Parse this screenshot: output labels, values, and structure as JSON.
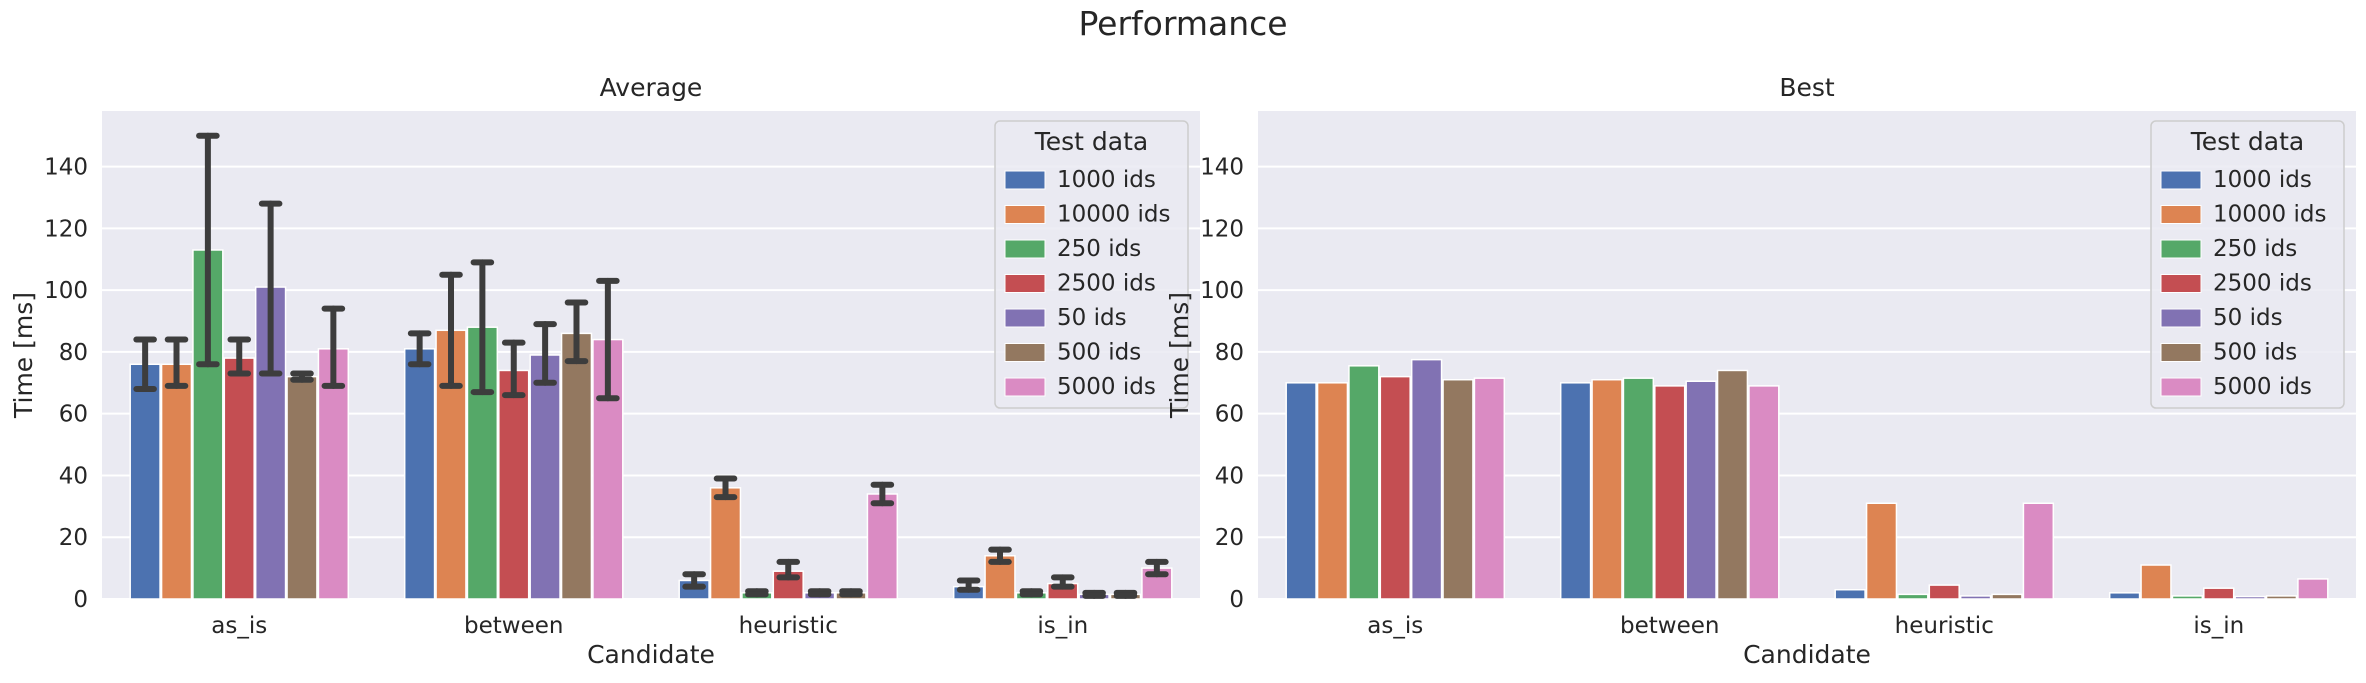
{
  "figure_title": "Performance",
  "chart_data": [
    {
      "type": "bar",
      "title": "Average",
      "xlabel": "Candidate",
      "ylabel": "Time [ms]",
      "categories": [
        "as_is",
        "between",
        "heuristic",
        "is_in"
      ],
      "ylim": [
        0,
        158
      ],
      "yticks": [
        0,
        20,
        40,
        60,
        80,
        100,
        120,
        140
      ],
      "grid": true,
      "legend": {
        "title": "Test data",
        "placement": "upper-right"
      },
      "error_bars": true,
      "series": [
        {
          "name": "1000 ids",
          "color": "#4c72b0",
          "values": [
            76,
            81,
            6,
            4
          ],
          "err_low": [
            68,
            76,
            4,
            3
          ],
          "err_high": [
            84,
            86,
            8,
            6
          ]
        },
        {
          "name": "10000 ids",
          "color": "#dd8452",
          "values": [
            76,
            87,
            36,
            14
          ],
          "err_low": [
            69,
            69,
            33,
            12
          ],
          "err_high": [
            84,
            105,
            39,
            16
          ]
        },
        {
          "name": "250 ids",
          "color": "#55a868",
          "values": [
            113,
            88,
            2,
            2
          ],
          "err_low": [
            76,
            67,
            1.5,
            1.5
          ],
          "err_high": [
            150,
            109,
            2.5,
            2.5
          ]
        },
        {
          "name": "2500 ids",
          "color": "#c44e52",
          "values": [
            78,
            74,
            9,
            5
          ],
          "err_low": [
            73,
            66,
            7,
            4
          ],
          "err_high": [
            84,
            83,
            12,
            7
          ]
        },
        {
          "name": "50 ids",
          "color": "#8172b3",
          "values": [
            101,
            79,
            2,
            1.5
          ],
          "err_low": [
            73,
            70,
            1.5,
            1
          ],
          "err_high": [
            128,
            89,
            2.5,
            2
          ]
        },
        {
          "name": "500 ids",
          "color": "#937860",
          "values": [
            72,
            86,
            2,
            1.5
          ],
          "err_low": [
            71,
            77,
            1.5,
            1
          ],
          "err_high": [
            73,
            96,
            2.5,
            2
          ]
        },
        {
          "name": "5000 ids",
          "color": "#da8bc3",
          "values": [
            81,
            84,
            34,
            10
          ],
          "err_low": [
            69,
            65,
            31,
            8
          ],
          "err_high": [
            94,
            103,
            37,
            12
          ]
        }
      ]
    },
    {
      "type": "bar",
      "title": "Best",
      "xlabel": "Candidate",
      "ylabel": "Time [ms]",
      "categories": [
        "as_is",
        "between",
        "heuristic",
        "is_in"
      ],
      "ylim": [
        0,
        158
      ],
      "yticks": [
        0,
        20,
        40,
        60,
        80,
        100,
        120,
        140
      ],
      "grid": true,
      "legend": {
        "title": "Test data",
        "placement": "upper-right"
      },
      "error_bars": false,
      "series": [
        {
          "name": "1000 ids",
          "color": "#4c72b0",
          "values": [
            70,
            70,
            3,
            2
          ]
        },
        {
          "name": "10000 ids",
          "color": "#dd8452",
          "values": [
            70,
            71,
            31,
            11
          ]
        },
        {
          "name": "250 ids",
          "color": "#55a868",
          "values": [
            75.5,
            71.5,
            1.5,
            1
          ]
        },
        {
          "name": "2500 ids",
          "color": "#c44e52",
          "values": [
            72,
            69,
            4.5,
            3.5
          ]
        },
        {
          "name": "50 ids",
          "color": "#8172b3",
          "values": [
            77.5,
            70.5,
            1,
            0.8
          ]
        },
        {
          "name": "500 ids",
          "color": "#937860",
          "values": [
            71,
            74,
            1.5,
            1
          ]
        },
        {
          "name": "5000 ids",
          "color": "#da8bc3",
          "values": [
            71.5,
            69,
            31,
            6.5
          ]
        }
      ]
    }
  ]
}
